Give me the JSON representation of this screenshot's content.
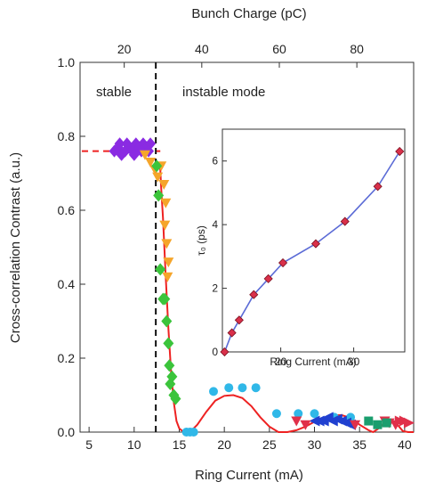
{
  "chart_data": {
    "type": "scatter",
    "title": "",
    "xlabel": "Ring Current (mA)",
    "ylabel": "Cross-correlation Contrast (a.u.)",
    "top_xlabel": "Bunch Charge (pC)",
    "xlim": [
      4,
      41
    ],
    "ylim": [
      0,
      1.0
    ],
    "x_ticks": [
      5,
      10,
      15,
      20,
      25,
      30,
      35,
      40
    ],
    "y_ticks": [
      0.0,
      0.2,
      0.4,
      0.6,
      0.8,
      1.0
    ],
    "top_ticks": [
      {
        "value": 20,
        "at_x": 8.9
      },
      {
        "value": 40,
        "at_x": 17.5
      },
      {
        "value": 60,
        "at_x": 26.1
      },
      {
        "value": 80,
        "at_x": 34.7
      }
    ],
    "annotations": {
      "stable": "stable",
      "instable": "instable mode"
    },
    "threshold_x": 12.4,
    "stable_level": 0.76,
    "colors": {
      "purple": "#8a2be2",
      "orange": "#f5a52a",
      "green": "#3bc43b",
      "cyan": "#30b8e8",
      "blue": "#2040d0",
      "red_marker": "#e0304a",
      "teal": "#1a9e6e",
      "fit": "#ee2222",
      "inset_line": "#5b6bd6",
      "inset_marker": "#d9304a"
    },
    "series": [
      {
        "marker": "diamond",
        "color": "purple",
        "points": [
          [
            7.8,
            0.76
          ],
          [
            8.2,
            0.77
          ],
          [
            8.6,
            0.75
          ],
          [
            9.0,
            0.76
          ],
          [
            9.4,
            0.77
          ],
          [
            9.8,
            0.76
          ],
          [
            10.2,
            0.78
          ],
          [
            10.6,
            0.77
          ],
          [
            11.0,
            0.78
          ],
          [
            11.4,
            0.77
          ],
          [
            11.8,
            0.78
          ],
          [
            8.4,
            0.78
          ],
          [
            9.2,
            0.78
          ],
          [
            10.0,
            0.75
          ],
          [
            10.8,
            0.76
          ],
          [
            11.6,
            0.76
          ]
        ]
      },
      {
        "marker": "triangle-down",
        "color": "orange",
        "points": [
          [
            11.2,
            0.75
          ],
          [
            11.8,
            0.73
          ],
          [
            12.3,
            0.71
          ],
          [
            12.6,
            0.69
          ],
          [
            13.0,
            0.72
          ],
          [
            13.3,
            0.67
          ],
          [
            13.5,
            0.62
          ],
          [
            13.4,
            0.56
          ],
          [
            13.6,
            0.51
          ],
          [
            13.8,
            0.46
          ],
          [
            13.7,
            0.42
          ]
        ]
      },
      {
        "marker": "diamond",
        "color": "green",
        "points": [
          [
            12.5,
            0.72
          ],
          [
            12.7,
            0.64
          ],
          [
            12.9,
            0.44
          ],
          [
            13.2,
            0.36
          ],
          [
            13.4,
            0.36
          ],
          [
            13.6,
            0.3
          ],
          [
            13.8,
            0.24
          ],
          [
            13.9,
            0.18
          ],
          [
            14.0,
            0.13
          ],
          [
            14.2,
            0.15
          ],
          [
            14.4,
            0.1
          ],
          [
            14.6,
            0.09
          ]
        ]
      },
      {
        "marker": "circle",
        "color": "cyan",
        "points": [
          [
            15.8,
            0.0
          ],
          [
            16.2,
            0.0
          ],
          [
            16.6,
            0.0
          ],
          [
            18.8,
            0.11
          ],
          [
            20.5,
            0.12
          ],
          [
            22.0,
            0.12
          ],
          [
            23.5,
            0.12
          ],
          [
            25.8,
            0.05
          ],
          [
            28.2,
            0.05
          ],
          [
            30.0,
            0.05
          ],
          [
            32.2,
            0.04
          ],
          [
            34.0,
            0.04
          ]
        ]
      },
      {
        "marker": "triangle-left",
        "color": "blue",
        "points": [
          [
            30.0,
            0.03
          ],
          [
            30.5,
            0.03
          ],
          [
            31.0,
            0.03
          ],
          [
            31.5,
            0.04
          ],
          [
            32.0,
            0.03
          ],
          [
            32.5,
            0.035
          ],
          [
            33.0,
            0.03
          ],
          [
            33.5,
            0.025
          ],
          [
            34.0,
            0.02
          ]
        ]
      },
      {
        "marker": "triangle-down",
        "color": "red_marker",
        "points": [
          [
            28.0,
            0.03
          ],
          [
            29.0,
            0.02
          ],
          [
            34.5,
            0.02
          ],
          [
            37.8,
            0.03
          ],
          [
            38.3,
            0.025
          ],
          [
            39.0,
            0.02
          ]
        ]
      },
      {
        "marker": "triangle-right",
        "color": "red_marker",
        "points": [
          [
            39.5,
            0.03
          ],
          [
            40.0,
            0.03
          ],
          [
            40.5,
            0.025
          ]
        ]
      },
      {
        "marker": "square",
        "color": "teal",
        "points": [
          [
            36.0,
            0.03
          ],
          [
            37.0,
            0.02
          ],
          [
            38.0,
            0.025
          ]
        ]
      }
    ],
    "fit_curve": [
      [
        12.8,
        0.72
      ],
      [
        12.9,
        0.71
      ],
      [
        13.0,
        0.66
      ],
      [
        13.2,
        0.58
      ],
      [
        13.5,
        0.42
      ],
      [
        13.8,
        0.28
      ],
      [
        14.1,
        0.16
      ],
      [
        14.4,
        0.08
      ],
      [
        14.7,
        0.03
      ],
      [
        15.0,
        0.01
      ],
      [
        15.5,
        0.0
      ],
      [
        16.2,
        0.0
      ],
      [
        17.0,
        0.02
      ],
      [
        18.0,
        0.055
      ],
      [
        19.0,
        0.085
      ],
      [
        20.0,
        0.098
      ],
      [
        21.0,
        0.1
      ],
      [
        22.0,
        0.092
      ],
      [
        23.0,
        0.07
      ],
      [
        24.0,
        0.04
      ],
      [
        25.0,
        0.015
      ],
      [
        26.0,
        0.0
      ],
      [
        27.0,
        0.0
      ],
      [
        28.0,
        0.005
      ],
      [
        29.0,
        0.015
      ],
      [
        30.0,
        0.028
      ],
      [
        31.0,
        0.038
      ],
      [
        32.0,
        0.045
      ],
      [
        33.0,
        0.046
      ],
      [
        34.0,
        0.038
      ],
      [
        35.0,
        0.02
      ],
      [
        36.0,
        0.005
      ],
      [
        36.5,
        0.0
      ],
      [
        37.0,
        0.008
      ],
      [
        38.0,
        0.03
      ],
      [
        38.6,
        0.032
      ],
      [
        39.2,
        0.02
      ],
      [
        39.8,
        0.003
      ],
      [
        40.4,
        0.0
      ],
      [
        41.0,
        0.0
      ]
    ],
    "inset": {
      "xlabel": "Ring Current (mA)",
      "ylabel": "τ₀ (ps)",
      "xlim": [
        12,
        37
      ],
      "ylim": [
        0,
        7
      ],
      "x_ticks": [
        20,
        30
      ],
      "y_ticks": [
        0,
        2,
        4,
        6
      ],
      "points": [
        [
          12.3,
          0.0
        ],
        [
          13.3,
          0.6
        ],
        [
          14.3,
          1.0
        ],
        [
          16.3,
          1.8
        ],
        [
          18.3,
          2.3
        ],
        [
          20.3,
          2.8
        ],
        [
          24.8,
          3.4
        ],
        [
          28.8,
          4.1
        ],
        [
          33.3,
          5.2
        ],
        [
          36.3,
          6.3
        ]
      ]
    }
  }
}
